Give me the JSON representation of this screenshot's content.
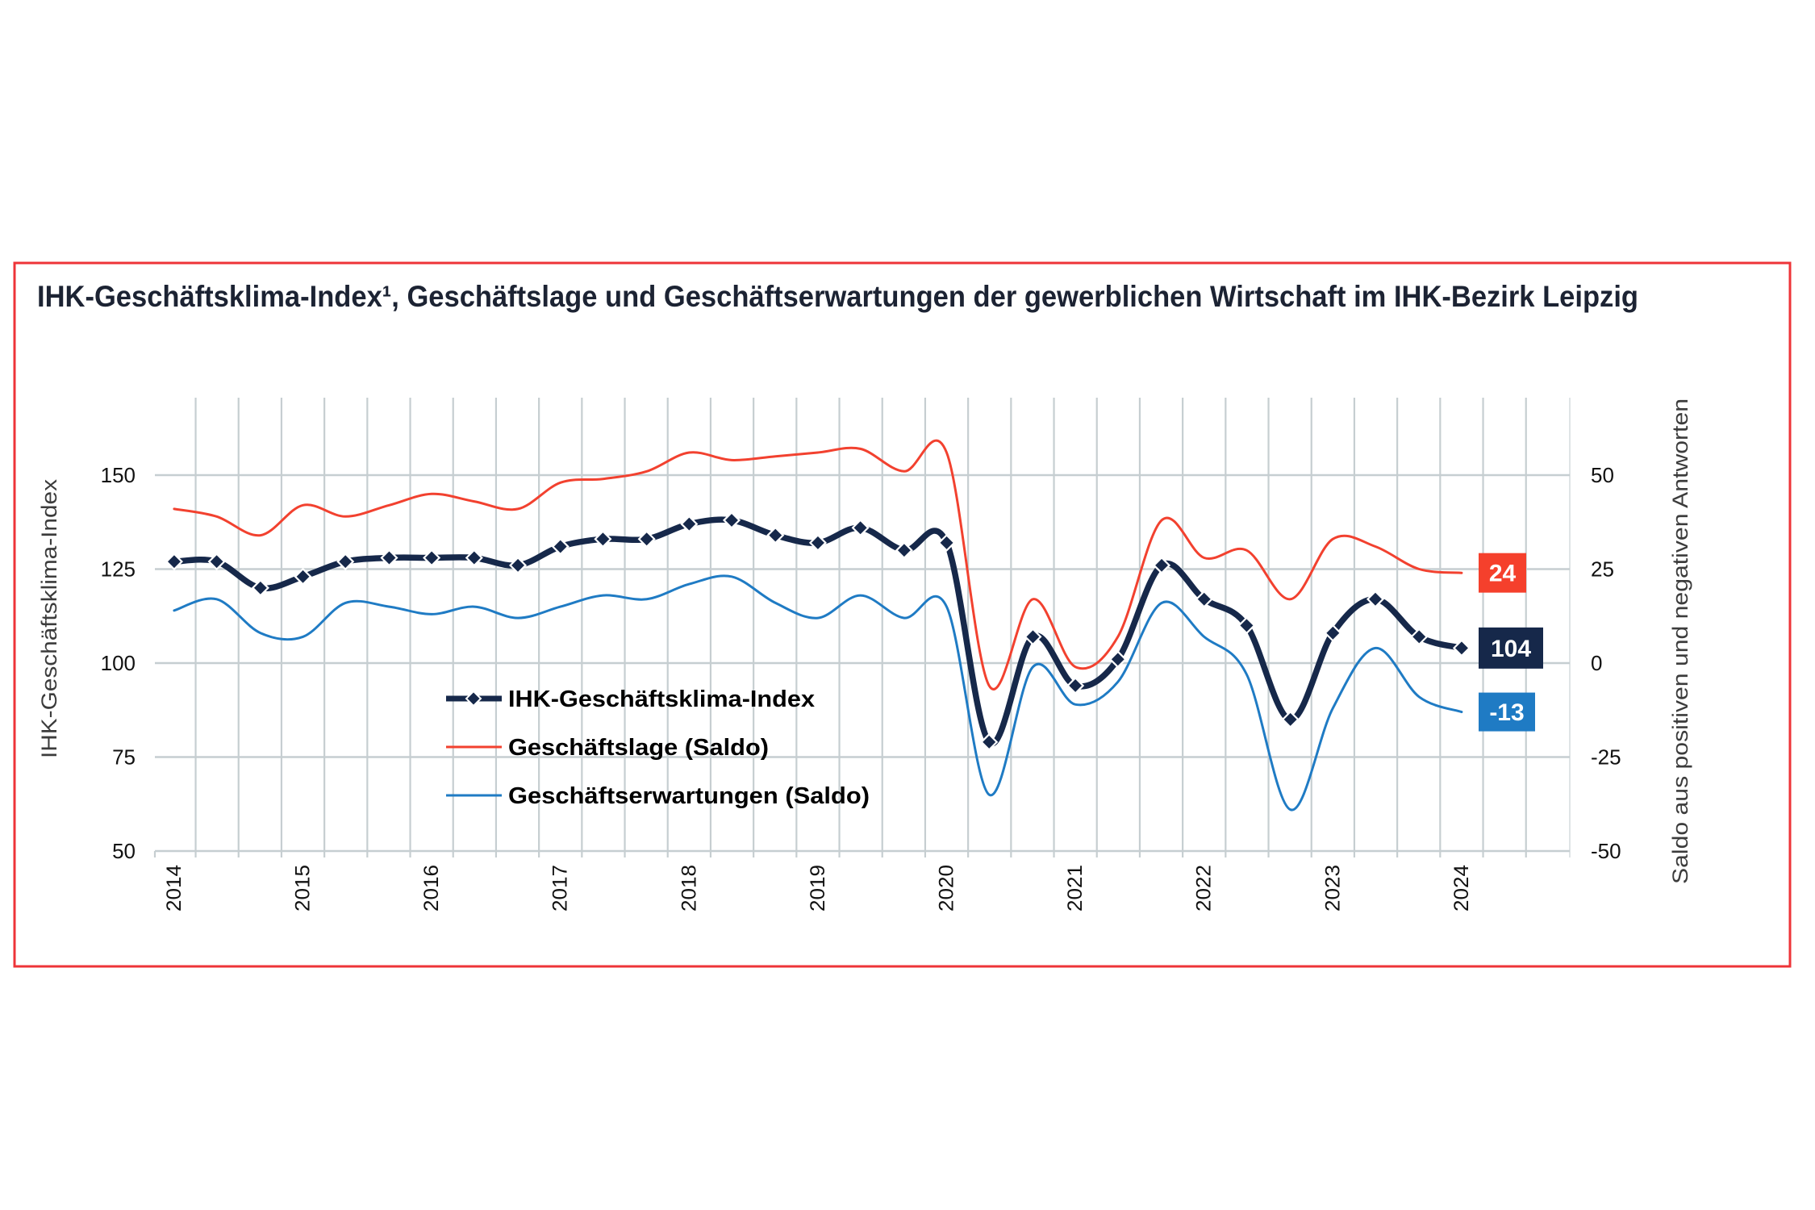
{
  "chart_data": {
    "type": "line",
    "title": "IHK-Geschäftsklima-Index¹, Geschäftslage und Geschäftserwartungen der gewerblichen Wirtschaft im IHK-Bezirk Leipzig",
    "xlabel": "",
    "ylabel": "IHK-Geschäftsklima-Index",
    "ylabel_right": "Saldo aus positiven und negativen Antworten",
    "x_tick_labels": [
      "2014",
      "2015",
      "2016",
      "2017",
      "2018",
      "2019",
      "2020",
      "2021",
      "2022",
      "2023",
      "2024"
    ],
    "y_ticks": [
      50,
      75,
      100,
      125,
      150
    ],
    "y_ticks_right": [
      -50,
      -25,
      0,
      25,
      50
    ],
    "ylim": [
      50,
      170.6
    ],
    "ylim_right": [
      -50,
      70.6
    ],
    "xlim": [
      2013.85,
      2024.84
    ],
    "grid": true,
    "legend_position": "center-left",
    "x": [
      2014,
      2014.33,
      2014.67,
      2015,
      2015.33,
      2015.67,
      2016,
      2016.33,
      2016.67,
      2017,
      2017.33,
      2017.67,
      2018,
      2018.33,
      2018.67,
      2019,
      2019.33,
      2019.67,
      2020,
      2020.33,
      2020.67,
      2021,
      2021.33,
      2021.67,
      2022,
      2022.33,
      2022.67,
      2023,
      2023.33,
      2023.67,
      2024
    ],
    "series": [
      {
        "name": "IHK-Geschäftsklima-Index",
        "axis": "left",
        "color": "#16284a",
        "markers": "diamond",
        "values": [
          127,
          127,
          120,
          123,
          127,
          128,
          128,
          128,
          126,
          131,
          133,
          133,
          137,
          138,
          134,
          132,
          136,
          130,
          132,
          79,
          107,
          94,
          101,
          126,
          117,
          110,
          85,
          108,
          117,
          107,
          104
        ],
        "end_label": "104"
      },
      {
        "name": "Geschäftslage (Saldo)",
        "axis": "right",
        "color": "#f2412f",
        "markers": "none",
        "values": [
          41,
          39,
          34,
          42,
          39,
          42,
          45,
          43,
          41,
          48,
          49,
          51,
          56,
          54,
          55,
          56,
          57,
          51,
          56,
          -6,
          17,
          -1,
          7,
          38,
          28,
          30,
          17,
          33,
          31,
          25,
          24
        ],
        "end_label": "24"
      },
      {
        "name": "Geschäftserwartungen (Saldo)",
        "axis": "right",
        "color": "#1f7bc4",
        "markers": "none",
        "values": [
          14,
          17,
          8,
          7,
          16,
          15,
          13,
          15,
          12,
          15,
          18,
          17,
          21,
          23,
          16,
          12,
          18,
          12,
          15,
          -35,
          -1,
          -11,
          -5,
          16,
          7,
          -3,
          -39,
          -12,
          4,
          -9,
          -13
        ],
        "end_label": "-13"
      }
    ]
  },
  "colors": {
    "frame": "#ee3438",
    "grid": "#c6ced1",
    "title": "#1c2333"
  }
}
